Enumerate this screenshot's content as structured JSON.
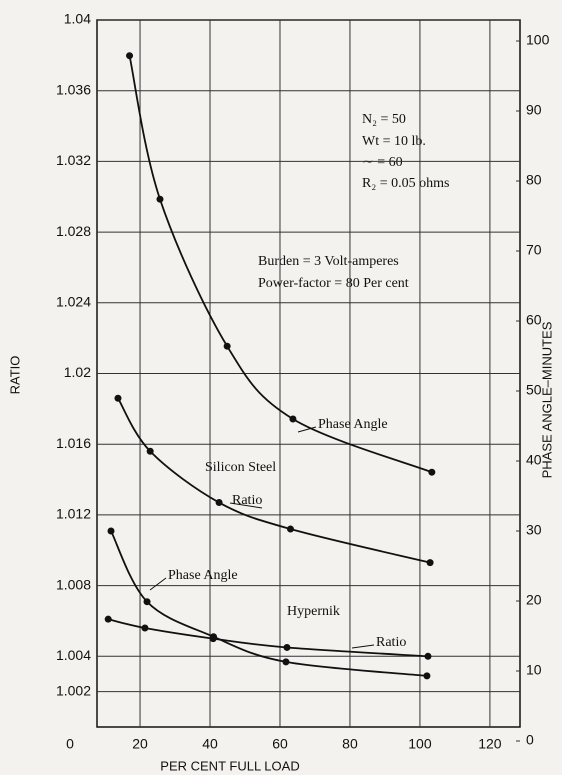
{
  "chart_data": {
    "type": "line",
    "xlabel": "PER CENT FULL LOAD",
    "ylabel": "RATIO",
    "y2label": "PHASE ANGLE–MINUTES",
    "xlim": [
      7.7,
      128.6
    ],
    "xticks": [
      0,
      20,
      40,
      60,
      80,
      100,
      120
    ],
    "ylim": [
      1.0,
      1.04
    ],
    "yticks": [
      1.002,
      1.004,
      1.008,
      1.012,
      1.016,
      1.02,
      1.024,
      1.028,
      1.032,
      1.036,
      1.04
    ],
    "y2lim": [
      2,
      103
    ],
    "y2ticks": [
      0,
      10,
      20,
      30,
      40,
      50,
      60,
      70,
      80,
      90,
      100
    ],
    "grid": true,
    "color": "#111111",
    "series": [
      {
        "name": "Phase Angle",
        "axis": "y2",
        "x": [
          17,
          25.7,
          44.9,
          63.7,
          103.4
        ],
        "values": [
          97.9,
          77.4,
          56.4,
          46,
          38.4
        ]
      },
      {
        "name": "Ratio",
        "axis": "y",
        "x": [
          13.7,
          22.9,
          42.6,
          63,
          102.9
        ],
        "values": [
          1.0186,
          1.0156,
          1.0127,
          1.0112,
          1.0093
        ]
      },
      {
        "name": "Phase Angle",
        "axis": "y2",
        "x": [
          11.7,
          22,
          41,
          61.7,
          102
        ],
        "values": [
          30,
          19.9,
          14.9,
          11.3,
          9.3
        ]
      },
      {
        "name": "Ratio",
        "axis": "y",
        "x": [
          10.9,
          21.4,
          40.9,
          62,
          102.3
        ],
        "values": [
          1.0061,
          1.0056,
          1.005,
          1.0045,
          1.004
        ]
      }
    ],
    "annotations": [
      "N₂ = 50",
      "Wt = 10 lb.",
      "∼ = 60",
      "R₂ = 0.05 ohms",
      "Burden = 3 Volt-amperes",
      "Power-factor = 80 Per cent",
      "Silicon Steel",
      "Hypernik"
    ]
  }
}
